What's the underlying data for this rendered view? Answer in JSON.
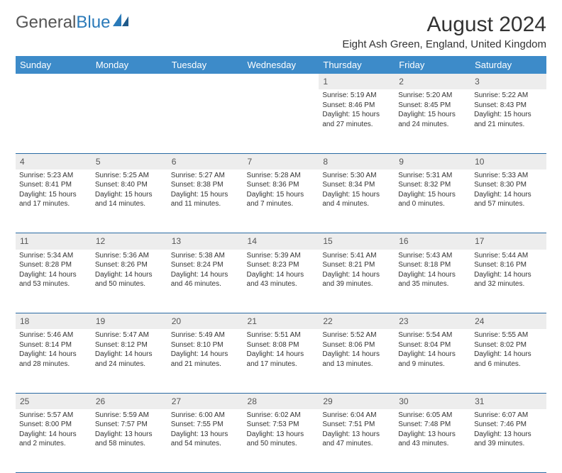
{
  "brand": {
    "part1": "General",
    "part2": "Blue"
  },
  "title": "August 2024",
  "location": "Eight Ash Green, England, United Kingdom",
  "colors": {
    "header_bg": "#3d8bc9",
    "header_text": "#ffffff",
    "daynum_bg": "#ededed",
    "rule": "#2a6aa3",
    "brand_blue": "#2a7ab9",
    "text": "#333333"
  },
  "typography": {
    "title_fontsize": 30,
    "location_fontsize": 15,
    "header_fontsize": 13,
    "daynum_fontsize": 12,
    "cell_fontsize": 10
  },
  "day_headers": [
    "Sunday",
    "Monday",
    "Tuesday",
    "Wednesday",
    "Thursday",
    "Friday",
    "Saturday"
  ],
  "weeks": [
    {
      "nums": [
        "",
        "",
        "",
        "",
        "1",
        "2",
        "3"
      ],
      "cells": [
        null,
        null,
        null,
        null,
        {
          "sunrise": "Sunrise: 5:19 AM",
          "sunset": "Sunset: 8:46 PM",
          "d1": "Daylight: 15 hours",
          "d2": "and 27 minutes."
        },
        {
          "sunrise": "Sunrise: 5:20 AM",
          "sunset": "Sunset: 8:45 PM",
          "d1": "Daylight: 15 hours",
          "d2": "and 24 minutes."
        },
        {
          "sunrise": "Sunrise: 5:22 AM",
          "sunset": "Sunset: 8:43 PM",
          "d1": "Daylight: 15 hours",
          "d2": "and 21 minutes."
        }
      ]
    },
    {
      "nums": [
        "4",
        "5",
        "6",
        "7",
        "8",
        "9",
        "10"
      ],
      "cells": [
        {
          "sunrise": "Sunrise: 5:23 AM",
          "sunset": "Sunset: 8:41 PM",
          "d1": "Daylight: 15 hours",
          "d2": "and 17 minutes."
        },
        {
          "sunrise": "Sunrise: 5:25 AM",
          "sunset": "Sunset: 8:40 PM",
          "d1": "Daylight: 15 hours",
          "d2": "and 14 minutes."
        },
        {
          "sunrise": "Sunrise: 5:27 AM",
          "sunset": "Sunset: 8:38 PM",
          "d1": "Daylight: 15 hours",
          "d2": "and 11 minutes."
        },
        {
          "sunrise": "Sunrise: 5:28 AM",
          "sunset": "Sunset: 8:36 PM",
          "d1": "Daylight: 15 hours",
          "d2": "and 7 minutes."
        },
        {
          "sunrise": "Sunrise: 5:30 AM",
          "sunset": "Sunset: 8:34 PM",
          "d1": "Daylight: 15 hours",
          "d2": "and 4 minutes."
        },
        {
          "sunrise": "Sunrise: 5:31 AM",
          "sunset": "Sunset: 8:32 PM",
          "d1": "Daylight: 15 hours",
          "d2": "and 0 minutes."
        },
        {
          "sunrise": "Sunrise: 5:33 AM",
          "sunset": "Sunset: 8:30 PM",
          "d1": "Daylight: 14 hours",
          "d2": "and 57 minutes."
        }
      ]
    },
    {
      "nums": [
        "11",
        "12",
        "13",
        "14",
        "15",
        "16",
        "17"
      ],
      "cells": [
        {
          "sunrise": "Sunrise: 5:34 AM",
          "sunset": "Sunset: 8:28 PM",
          "d1": "Daylight: 14 hours",
          "d2": "and 53 minutes."
        },
        {
          "sunrise": "Sunrise: 5:36 AM",
          "sunset": "Sunset: 8:26 PM",
          "d1": "Daylight: 14 hours",
          "d2": "and 50 minutes."
        },
        {
          "sunrise": "Sunrise: 5:38 AM",
          "sunset": "Sunset: 8:24 PM",
          "d1": "Daylight: 14 hours",
          "d2": "and 46 minutes."
        },
        {
          "sunrise": "Sunrise: 5:39 AM",
          "sunset": "Sunset: 8:23 PM",
          "d1": "Daylight: 14 hours",
          "d2": "and 43 minutes."
        },
        {
          "sunrise": "Sunrise: 5:41 AM",
          "sunset": "Sunset: 8:21 PM",
          "d1": "Daylight: 14 hours",
          "d2": "and 39 minutes."
        },
        {
          "sunrise": "Sunrise: 5:43 AM",
          "sunset": "Sunset: 8:18 PM",
          "d1": "Daylight: 14 hours",
          "d2": "and 35 minutes."
        },
        {
          "sunrise": "Sunrise: 5:44 AM",
          "sunset": "Sunset: 8:16 PM",
          "d1": "Daylight: 14 hours",
          "d2": "and 32 minutes."
        }
      ]
    },
    {
      "nums": [
        "18",
        "19",
        "20",
        "21",
        "22",
        "23",
        "24"
      ],
      "cells": [
        {
          "sunrise": "Sunrise: 5:46 AM",
          "sunset": "Sunset: 8:14 PM",
          "d1": "Daylight: 14 hours",
          "d2": "and 28 minutes."
        },
        {
          "sunrise": "Sunrise: 5:47 AM",
          "sunset": "Sunset: 8:12 PM",
          "d1": "Daylight: 14 hours",
          "d2": "and 24 minutes."
        },
        {
          "sunrise": "Sunrise: 5:49 AM",
          "sunset": "Sunset: 8:10 PM",
          "d1": "Daylight: 14 hours",
          "d2": "and 21 minutes."
        },
        {
          "sunrise": "Sunrise: 5:51 AM",
          "sunset": "Sunset: 8:08 PM",
          "d1": "Daylight: 14 hours",
          "d2": "and 17 minutes."
        },
        {
          "sunrise": "Sunrise: 5:52 AM",
          "sunset": "Sunset: 8:06 PM",
          "d1": "Daylight: 14 hours",
          "d2": "and 13 minutes."
        },
        {
          "sunrise": "Sunrise: 5:54 AM",
          "sunset": "Sunset: 8:04 PM",
          "d1": "Daylight: 14 hours",
          "d2": "and 9 minutes."
        },
        {
          "sunrise": "Sunrise: 5:55 AM",
          "sunset": "Sunset: 8:02 PM",
          "d1": "Daylight: 14 hours",
          "d2": "and 6 minutes."
        }
      ]
    },
    {
      "nums": [
        "25",
        "26",
        "27",
        "28",
        "29",
        "30",
        "31"
      ],
      "cells": [
        {
          "sunrise": "Sunrise: 5:57 AM",
          "sunset": "Sunset: 8:00 PM",
          "d1": "Daylight: 14 hours",
          "d2": "and 2 minutes."
        },
        {
          "sunrise": "Sunrise: 5:59 AM",
          "sunset": "Sunset: 7:57 PM",
          "d1": "Daylight: 13 hours",
          "d2": "and 58 minutes."
        },
        {
          "sunrise": "Sunrise: 6:00 AM",
          "sunset": "Sunset: 7:55 PM",
          "d1": "Daylight: 13 hours",
          "d2": "and 54 minutes."
        },
        {
          "sunrise": "Sunrise: 6:02 AM",
          "sunset": "Sunset: 7:53 PM",
          "d1": "Daylight: 13 hours",
          "d2": "and 50 minutes."
        },
        {
          "sunrise": "Sunrise: 6:04 AM",
          "sunset": "Sunset: 7:51 PM",
          "d1": "Daylight: 13 hours",
          "d2": "and 47 minutes."
        },
        {
          "sunrise": "Sunrise: 6:05 AM",
          "sunset": "Sunset: 7:48 PM",
          "d1": "Daylight: 13 hours",
          "d2": "and 43 minutes."
        },
        {
          "sunrise": "Sunrise: 6:07 AM",
          "sunset": "Sunset: 7:46 PM",
          "d1": "Daylight: 13 hours",
          "d2": "and 39 minutes."
        }
      ]
    }
  ]
}
